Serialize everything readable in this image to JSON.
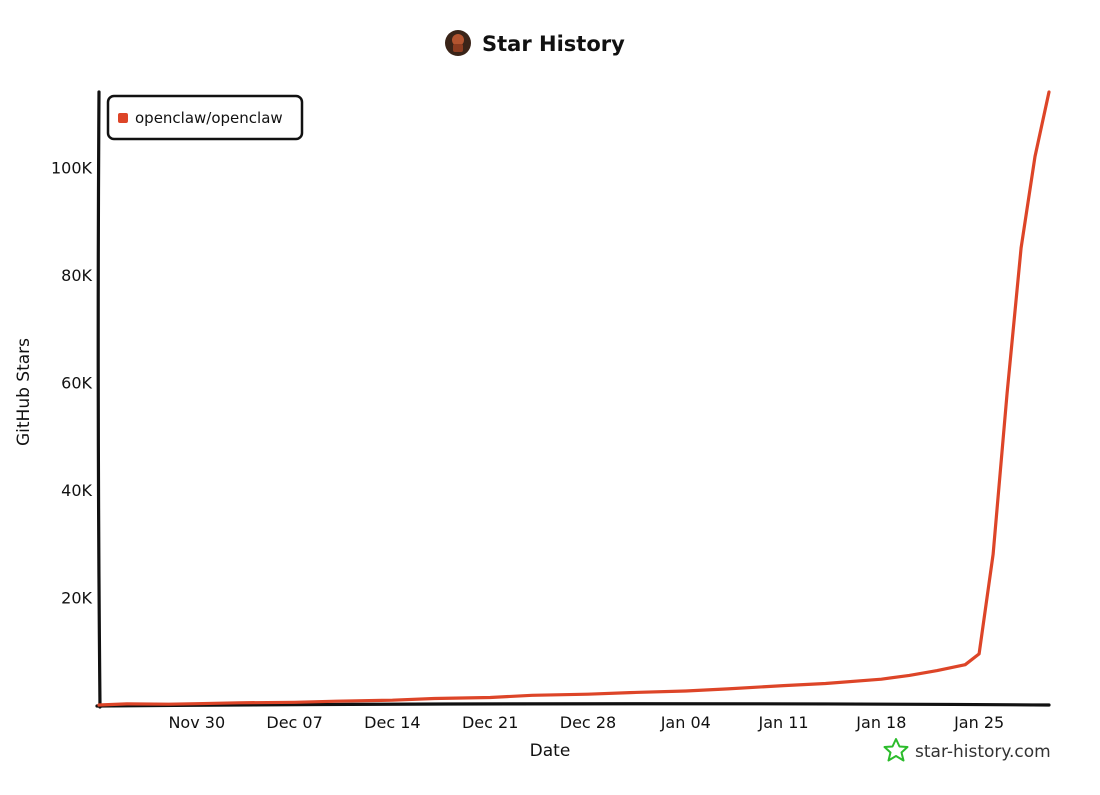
{
  "chart_data": {
    "type": "line",
    "title": "Star History",
    "xlabel": "Date",
    "ylabel": "GitHub Stars",
    "x_ticks": [
      "Nov 30",
      "Dec 07",
      "Dec 14",
      "Dec 21",
      "Dec 28",
      "Jan 04",
      "Jan 11",
      "Jan 18",
      "Jan 25"
    ],
    "y_ticks": [
      "20K",
      "40K",
      "60K",
      "80K",
      "100K"
    ],
    "ylim": [
      0,
      114000
    ],
    "xlim": [
      "2025-11-23",
      "2026-01-30"
    ],
    "grid": false,
    "legend_position": "top-left",
    "colors": {
      "series": "#dd4528",
      "axis": "#111111",
      "watermark": "#2bbc2b"
    },
    "series": [
      {
        "name": "openclaw/openclaw",
        "points": [
          {
            "x": "2025-11-23",
            "y": 0
          },
          {
            "x": "2025-11-25",
            "y": 200
          },
          {
            "x": "2025-11-28",
            "y": 150
          },
          {
            "x": "2025-11-30",
            "y": 250
          },
          {
            "x": "2025-12-03",
            "y": 400
          },
          {
            "x": "2025-12-07",
            "y": 500
          },
          {
            "x": "2025-12-10",
            "y": 700
          },
          {
            "x": "2025-12-14",
            "y": 900
          },
          {
            "x": "2025-12-17",
            "y": 1200
          },
          {
            "x": "2025-12-21",
            "y": 1400
          },
          {
            "x": "2025-12-24",
            "y": 1800
          },
          {
            "x": "2025-12-28",
            "y": 2000
          },
          {
            "x": "2025-12-31",
            "y": 2300
          },
          {
            "x": "2026-01-04",
            "y": 2600
          },
          {
            "x": "2026-01-07",
            "y": 3000
          },
          {
            "x": "2026-01-11",
            "y": 3600
          },
          {
            "x": "2026-01-14",
            "y": 4000
          },
          {
            "x": "2026-01-18",
            "y": 4800
          },
          {
            "x": "2026-01-20",
            "y": 5500
          },
          {
            "x": "2026-01-22",
            "y": 6400
          },
          {
            "x": "2026-01-24",
            "y": 7500
          },
          {
            "x": "2026-01-25",
            "y": 9500
          },
          {
            "x": "2026-01-26",
            "y": 28000
          },
          {
            "x": "2026-01-27",
            "y": 58000
          },
          {
            "x": "2026-01-28",
            "y": 85000
          },
          {
            "x": "2026-01-29",
            "y": 102000
          },
          {
            "x": "2026-01-30",
            "y": 114000
          }
        ]
      }
    ]
  },
  "watermark": {
    "text": "star-history.com",
    "icon": "star-icon"
  },
  "title_icon": "avatar-icon"
}
